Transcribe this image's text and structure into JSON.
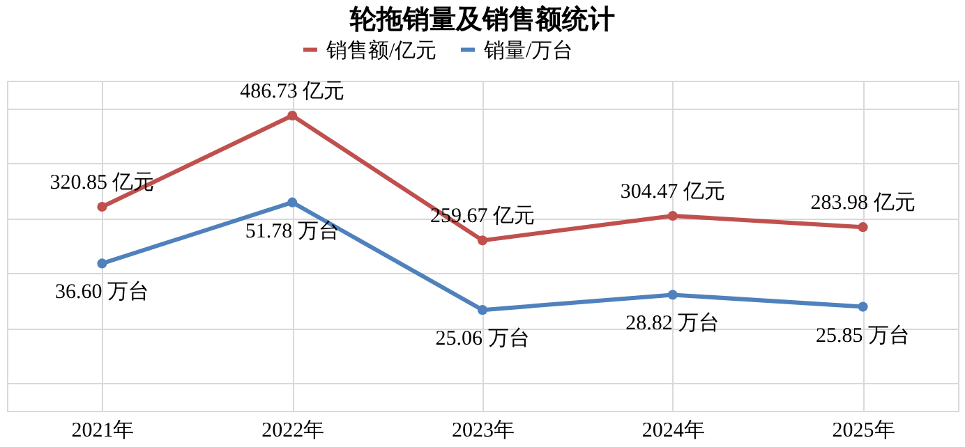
{
  "chart_data": {
    "type": "line",
    "title": "轮拖销量及销售额统计",
    "categories": [
      "2021年",
      "2022年",
      "2023年",
      "2024年",
      "2025年"
    ],
    "series": [
      {
        "name": "销售额/亿元",
        "color": "#c0504d",
        "values": [
          320.85,
          486.73,
          259.67,
          304.47,
          283.98
        ],
        "value_labels": [
          "320.85 亿元",
          "486.73 亿元",
          "259.67 亿元",
          "304.47 亿元",
          "283.98 亿元"
        ]
      },
      {
        "name": "销量/万台",
        "color": "#4f81bd",
        "axis": "y2",
        "values": [
          36.6,
          51.78,
          25.06,
          28.82,
          25.85
        ],
        "value_labels": [
          "36.60 万台",
          "51.78 万台",
          "25.06 万台",
          "28.82 万台",
          "25.85 万台"
        ]
      }
    ],
    "ylim": [
      -50,
      550
    ],
    "y2lim": [
      0,
      82
    ],
    "grid": true,
    "legend": "top",
    "marker": "circle",
    "line_style": "solid",
    "tick_labels": "x"
  }
}
